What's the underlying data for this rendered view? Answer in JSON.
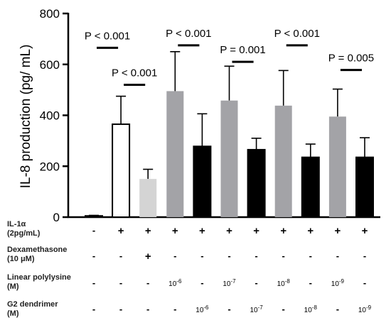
{
  "chart_data": {
    "type": "bar",
    "ylabel": "IL-8 production (pg/ mL)",
    "ylim": [
      0,
      800
    ],
    "yticks": [
      "0",
      "200",
      "400",
      "600",
      "800"
    ],
    "grid": false,
    "colors": {
      "outline": "#000000",
      "white": "#ffffff",
      "light_gray": "#d4d4d4",
      "gray": "#a3a3a7",
      "black": "#000000"
    },
    "bars": [
      {
        "value": 5,
        "error": 2,
        "fill": "white"
      },
      {
        "value": 365,
        "error": 110,
        "fill": "white"
      },
      {
        "value": 150,
        "error": 38,
        "fill": "light_gray"
      },
      {
        "value": 495,
        "error": 155,
        "fill": "gray"
      },
      {
        "value": 278,
        "error": 128,
        "fill": "black"
      },
      {
        "value": 458,
        "error": 135,
        "fill": "gray"
      },
      {
        "value": 265,
        "error": 45,
        "fill": "black"
      },
      {
        "value": 438,
        "error": 138,
        "fill": "gray"
      },
      {
        "value": 235,
        "error": 52,
        "fill": "black"
      },
      {
        "value": 395,
        "error": 108,
        "fill": "gray"
      },
      {
        "value": 235,
        "error": 77,
        "fill": "black"
      }
    ],
    "annotations": [
      {
        "text": "P < 0.001",
        "bars": [
          0,
          1
        ],
        "y": 665
      },
      {
        "text": "P < 0.001",
        "bars": [
          1,
          2
        ],
        "y": 520
      },
      {
        "text": "P < 0.001",
        "bars": [
          3,
          4
        ],
        "y": 675
      },
      {
        "text": "P = 0.001",
        "bars": [
          5,
          6
        ],
        "y": 610
      },
      {
        "text": "P < 0.001",
        "bars": [
          7,
          8
        ],
        "y": 675
      },
      {
        "text": "P = 0.005",
        "bars": [
          9,
          10
        ],
        "y": 578
      }
    ],
    "conditions": [
      {
        "label": [
          "IL-1α",
          " (2pg/mL)"
        ],
        "values": [
          "-",
          "+",
          "+",
          "+",
          "+",
          "+",
          "+",
          "+",
          "+",
          "+",
          "+"
        ]
      },
      {
        "label": [
          "Dexamethasone",
          "(10 μM)"
        ],
        "values": [
          "-",
          "-",
          "+",
          "-",
          "-",
          "-",
          "-",
          "-",
          "-",
          "-",
          "-"
        ]
      },
      {
        "label": [
          "Linear polylysine",
          "(M)"
        ],
        "values": [
          "-",
          "-",
          "-",
          "10-6",
          "-",
          "10-7",
          "-",
          "10-8",
          "-",
          "10-9",
          "-"
        ]
      },
      {
        "label": [
          "G2 dendrimer",
          "(M)"
        ],
        "values": [
          "-",
          "-",
          "-",
          "-",
          "10-6",
          "-",
          "10-7",
          "-",
          "10-8",
          "-",
          "10-9"
        ]
      }
    ]
  }
}
